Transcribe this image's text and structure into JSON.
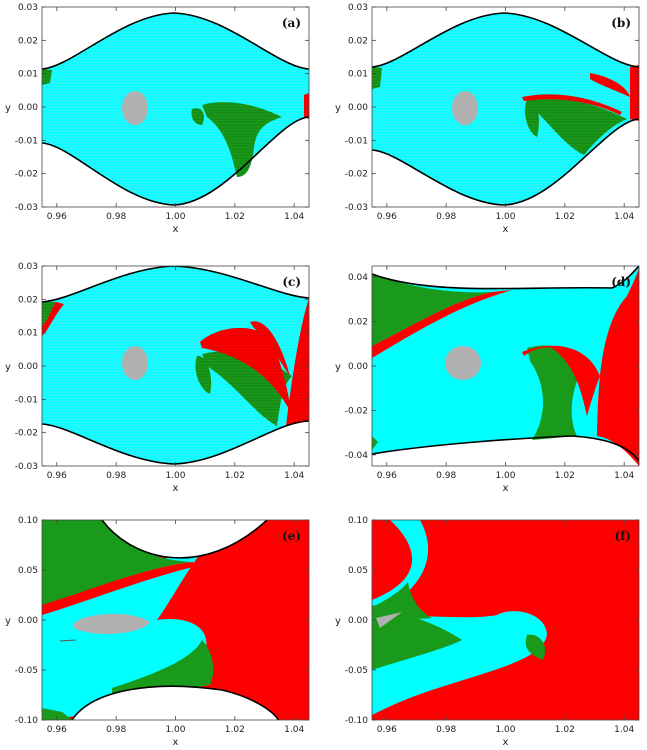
{
  "colors": {
    "cyan": "#00ffff",
    "green": "#1a9a1a",
    "red": "#ff0000",
    "gray": "#b0b0b0",
    "white": "#ffffff",
    "boundary": "#000000"
  },
  "chart_data": [
    {
      "type": "heatmap",
      "panel_label": "(a)",
      "xlabel": "x",
      "ylabel": "y",
      "xlim": [
        0.955,
        1.045
      ],
      "ylim": [
        -0.03,
        0.03
      ],
      "xticks": [
        "0.96",
        "0.98",
        "1.00",
        "1.02",
        "1.04"
      ],
      "yticks": [
        "0.03",
        "0.02",
        "0.01",
        "0.00",
        "-0.01",
        "-0.02",
        "-0.03"
      ]
    },
    {
      "type": "heatmap",
      "panel_label": "(b)",
      "xlabel": "x",
      "ylabel": "y",
      "xlim": [
        0.955,
        1.045
      ],
      "ylim": [
        -0.03,
        0.03
      ],
      "xticks": [
        "0.96",
        "0.98",
        "1.00",
        "1.02",
        "1.04"
      ],
      "yticks": [
        "0.03",
        "0.02",
        "0.01",
        "0.00",
        "-0.01",
        "-0.02",
        "-0.03"
      ]
    },
    {
      "type": "heatmap",
      "panel_label": "(c)",
      "xlabel": "x",
      "ylabel": "y",
      "xlim": [
        0.955,
        1.045
      ],
      "ylim": [
        -0.03,
        0.03
      ],
      "xticks": [
        "0.96",
        "0.98",
        "1.00",
        "1.02",
        "1.04"
      ],
      "yticks": [
        "0.03",
        "0.02",
        "0.01",
        "0.00",
        "-0.01",
        "-0.02",
        "-0.03"
      ]
    },
    {
      "type": "heatmap",
      "panel_label": "(d)",
      "xlabel": "x",
      "ylabel": "y",
      "xlim": [
        0.955,
        1.045
      ],
      "ylim": [
        -0.045,
        0.045
      ],
      "xticks": [
        "0.96",
        "0.98",
        "1.00",
        "1.02",
        "1.04"
      ],
      "yticks": [
        "0.04",
        "0.02",
        "0.00",
        "-0.02",
        "-0.04"
      ]
    },
    {
      "type": "heatmap",
      "panel_label": "(e)",
      "xlabel": "x",
      "ylabel": "y",
      "xlim": [
        0.955,
        1.045
      ],
      "ylim": [
        -0.1,
        0.1
      ],
      "xticks": [
        "0.96",
        "0.98",
        "1.00",
        "1.02",
        "1.04"
      ],
      "yticks": [
        "0.10",
        "0.05",
        "0.00",
        "-0.05",
        "-0.10"
      ]
    },
    {
      "type": "heatmap",
      "panel_label": "(f)",
      "xlabel": "x",
      "ylabel": "y",
      "xlim": [
        0.955,
        1.045
      ],
      "ylim": [
        -0.1,
        0.1
      ],
      "xticks": [
        "0.96",
        "0.98",
        "1.00",
        "1.02",
        "1.04"
      ],
      "yticks": [
        "0.10",
        "0.05",
        "0.00",
        "-0.05",
        "-0.10"
      ]
    }
  ]
}
